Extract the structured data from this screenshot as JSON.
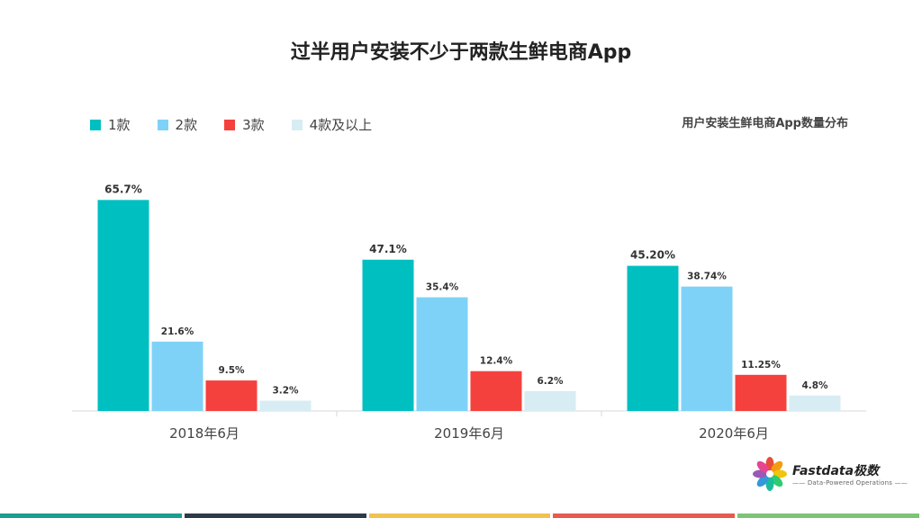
{
  "page": {
    "logo": {
      "name": "Fastdata极数",
      "tagline": "—— Data-Powered Operations ——"
    },
    "footer_colors": [
      "#1a9e8f",
      "#2d3a4a",
      "#f2c14e",
      "#e85a4f",
      "#7cc576"
    ]
  },
  "chart_data": {
    "type": "bar",
    "title": "过半用户安装不少于两款生鲜电商App",
    "subtitle": "用户安装生鲜电商App数量分布",
    "categories": [
      "2018年6月",
      "2019年6月",
      "2020年6月"
    ],
    "series": [
      {
        "name": "1款",
        "color": "#00bfc1",
        "values": [
          65.7,
          47.1,
          45.2
        ],
        "labels": [
          "65.7%",
          "47.1%",
          "45.20%"
        ]
      },
      {
        "name": "2款",
        "color": "#7fd2f7",
        "values": [
          21.6,
          35.4,
          38.74
        ],
        "labels": [
          "21.6%",
          "35.4%",
          "38.74%"
        ]
      },
      {
        "name": "3款",
        "color": "#f5413d",
        "values": [
          9.5,
          12.4,
          11.25
        ],
        "labels": [
          "9.5%",
          "12.4%",
          "11.25%"
        ]
      },
      {
        "name": "4款及以上",
        "color": "#d8ecf3",
        "values": [
          3.2,
          6.2,
          4.8
        ],
        "labels": [
          "3.2%",
          "6.2%",
          "4.8%"
        ]
      }
    ],
    "ylim": [
      0,
      70
    ],
    "grid": false,
    "legend": "top-left"
  }
}
